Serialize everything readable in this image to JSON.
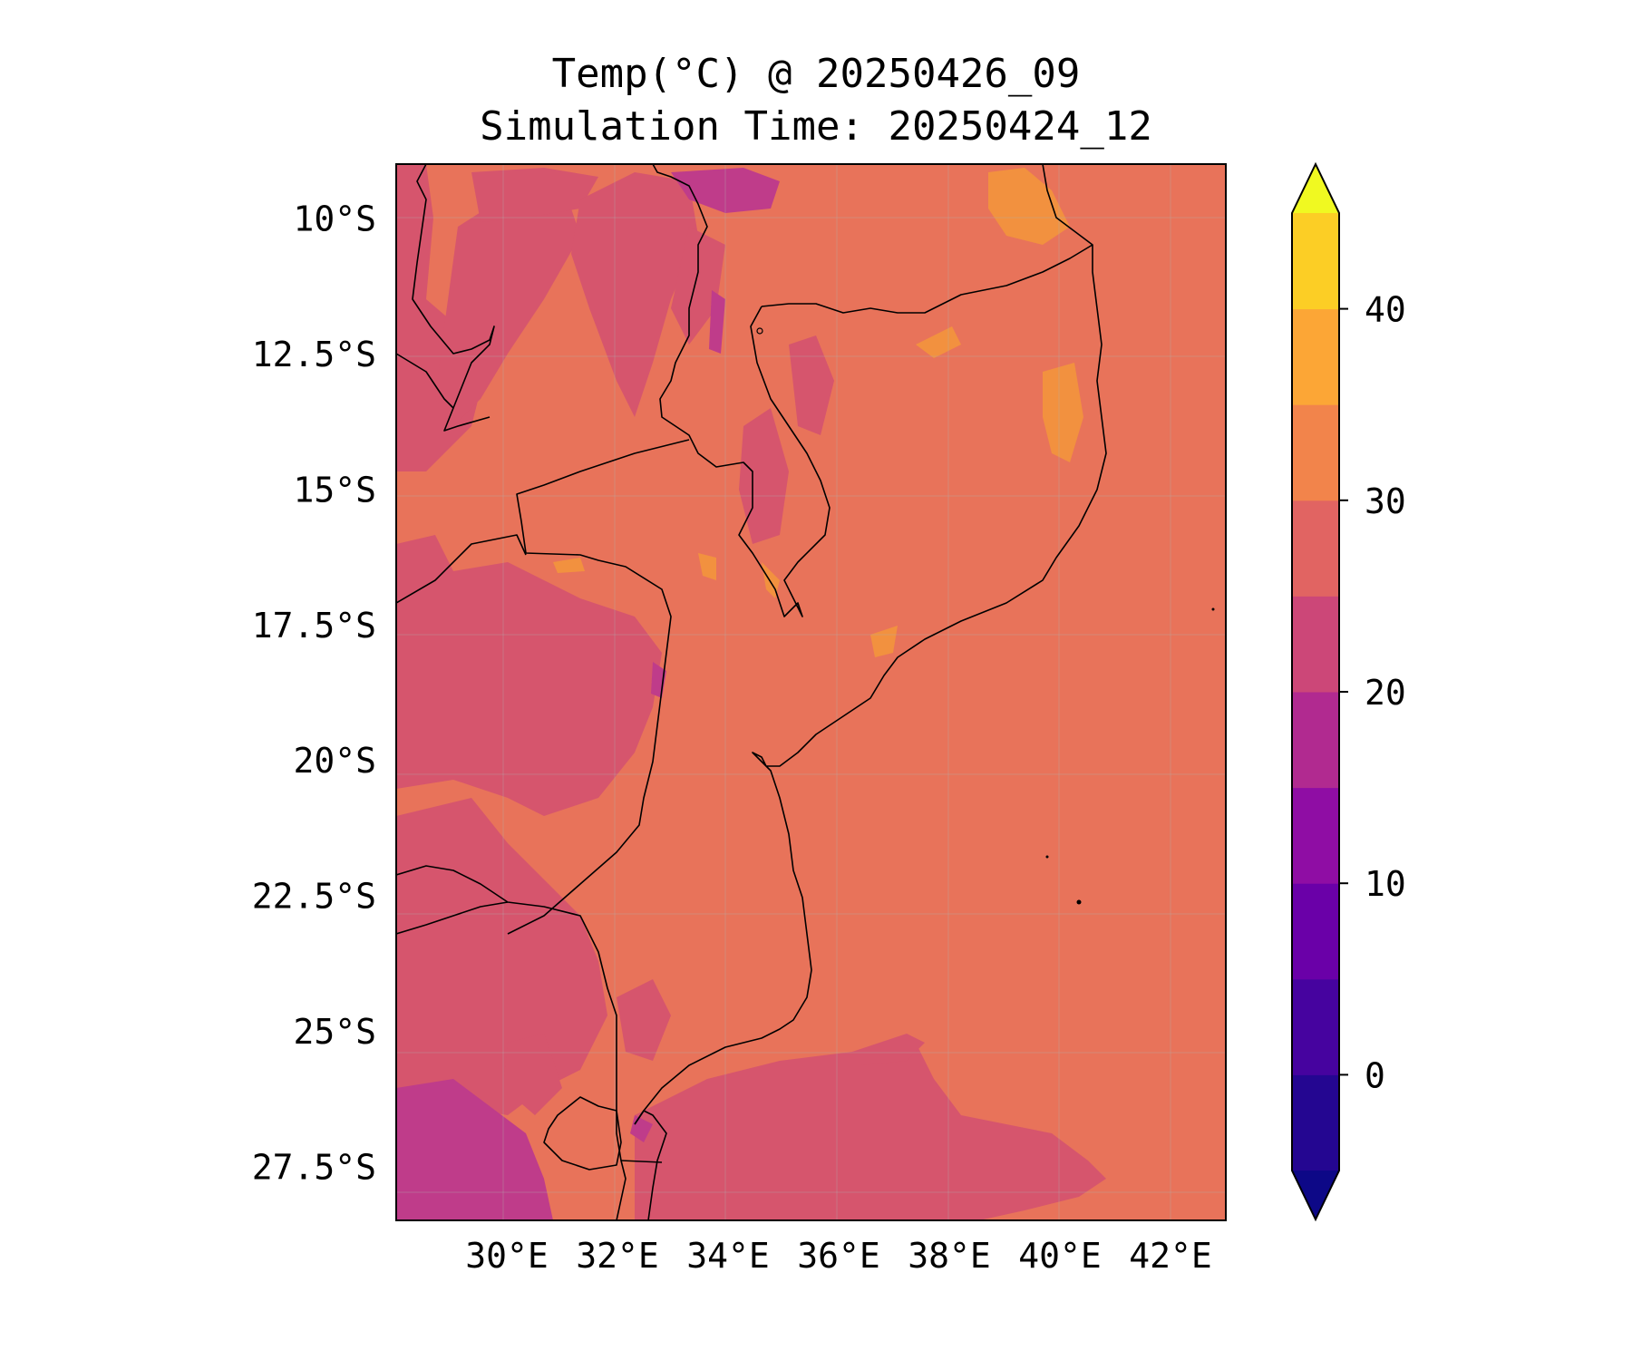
{
  "title": {
    "line1": "Temp(°C) @ 20250426_09",
    "line2": "Simulation Time: 20250424_12"
  },
  "map": {
    "extent": {
      "lon": [
        28.0,
        43.0
      ],
      "lat": [
        -28.5,
        -9.0
      ]
    },
    "lat_ticks": [
      {
        "value": -10.0,
        "label": "10°S"
      },
      {
        "value": -12.5,
        "label": "12.5°S"
      },
      {
        "value": -15.0,
        "label": "15°S"
      },
      {
        "value": -17.5,
        "label": "17.5°S"
      },
      {
        "value": -20.0,
        "label": "20°S"
      },
      {
        "value": -22.5,
        "label": "22.5°S"
      },
      {
        "value": -25.0,
        "label": "25°S"
      },
      {
        "value": -27.5,
        "label": "27.5°S"
      }
    ],
    "lon_ticks": [
      {
        "value": 30,
        "label": "30°E"
      },
      {
        "value": 32,
        "label": "32°E"
      },
      {
        "value": 34,
        "label": "34°E"
      },
      {
        "value": 36,
        "label": "36°E"
      },
      {
        "value": 38,
        "label": "38°E"
      },
      {
        "value": 40,
        "label": "40°E"
      },
      {
        "value": 42,
        "label": "42°E"
      }
    ],
    "ocean_value_band": "25-30",
    "colors": {
      "band_25_30": "#e8735a",
      "band_20_25": "#d6556d",
      "band_15_20": "#bf3c8a",
      "band_30_35": "#f2913f",
      "border": "#000000"
    }
  },
  "colorbar": {
    "min": -5,
    "max": 45,
    "extend": "both",
    "levels": [
      -5,
      0,
      5,
      10,
      15,
      20,
      25,
      30,
      35,
      40,
      45
    ],
    "colors": [
      "#240691",
      "#46039f",
      "#6a00a8",
      "#8f0da4",
      "#b12a90",
      "#cc4778",
      "#e16462",
      "#f2844b",
      "#fca636",
      "#fcce25"
    ],
    "under_color": "#0d0887",
    "over_color": "#f0f921",
    "ticks": [
      {
        "value": 0,
        "label": "0"
      },
      {
        "value": 10,
        "label": "10"
      },
      {
        "value": 20,
        "label": "20"
      },
      {
        "value": 30,
        "label": "30"
      },
      {
        "value": 40,
        "label": "40"
      }
    ]
  }
}
